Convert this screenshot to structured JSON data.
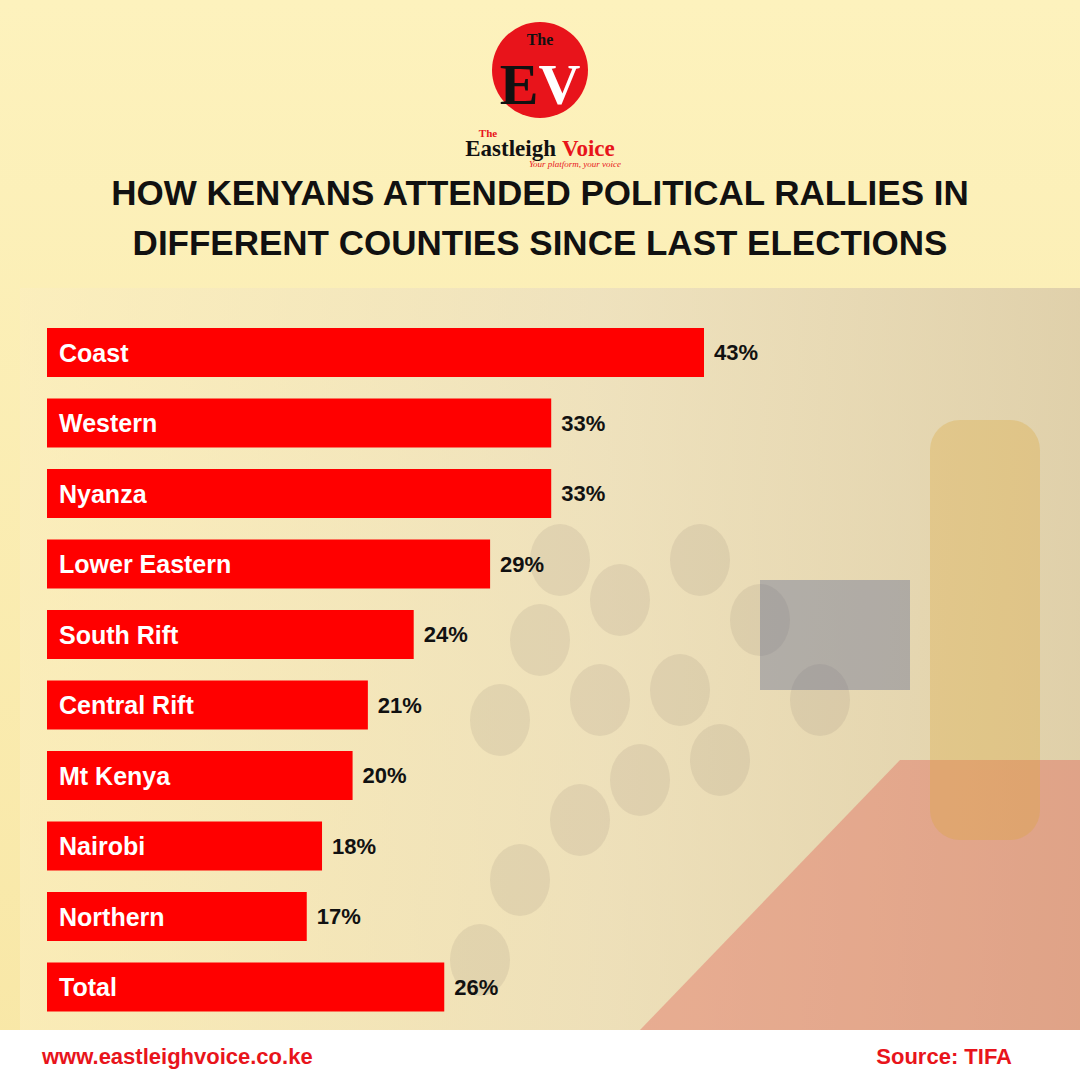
{
  "header": {
    "badge_top": "The",
    "badge": "EV",
    "brand_top": "The",
    "brand": "Eastleigh",
    "brand_accent": "Voice",
    "tagline": "Your platform, your voice"
  },
  "chart_data": {
    "type": "bar",
    "orientation": "horizontal",
    "title": "HOW KENYANS ATTENDED POLITICAL RALLIES IN DIFFERENT COUNTIES SINCE LAST ELECTIONS",
    "categories": [
      "Coast",
      "Western",
      "Nyanza",
      "Lower Eastern",
      "South Rift",
      "Central Rift",
      "Mt Kenya",
      "Nairobi",
      "Northern",
      "Total"
    ],
    "values": [
      43,
      33,
      33,
      29,
      24,
      21,
      20,
      18,
      17,
      26
    ],
    "value_labels": [
      "43%",
      "33%",
      "33%",
      "29%",
      "24%",
      "21%",
      "20%",
      "18%",
      "17%",
      "26%"
    ],
    "color": "#ff0000",
    "xlim": [
      0,
      43
    ],
    "tick_labels": false,
    "grid": false,
    "data_labels": true
  },
  "footer": {
    "website": "www.eastleighvoice.co.ke",
    "source": "Source: TIFA"
  }
}
